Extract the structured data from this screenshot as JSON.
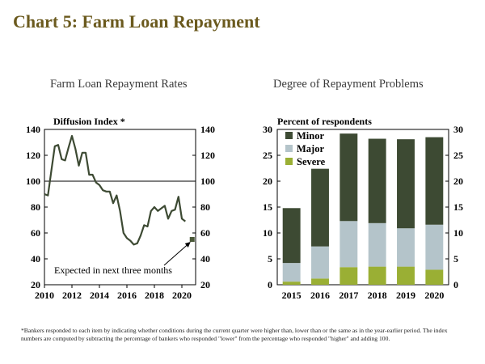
{
  "page": {
    "title": "Chart 5: Farm Loan Repayment",
    "footnote": "*Bankers responded to each item by indicating whether conditions during the current quarter were higher than, lower than or the same as in the year-earlier period.  The index numbers are computed by subtracting the percentage of bankers who responded \"lower\" from the percentage who responded \"higher\" and adding 100."
  },
  "colors": {
    "title": "#6b5a1e",
    "line": "#3d4a33",
    "minor": "#3d4a33",
    "major": "#b4c4ca",
    "severe": "#9aaf34",
    "expected_marker": "#4a5838"
  },
  "chart_data": [
    {
      "type": "line",
      "title": "Farm Loan Repayment Rates",
      "ylabel": "Diffusion Index *",
      "ylim": [
        20,
        140
      ],
      "yticks": [
        "20",
        "40",
        "60",
        "80",
        "100",
        "120",
        "140"
      ],
      "xlim": [
        2010,
        2021
      ],
      "xticks": [
        "2010",
        "2012",
        "2014",
        "2016",
        "2018",
        "2020"
      ],
      "reference_line": 100,
      "grid": false,
      "series": [
        {
          "x": [
            2010.0,
            2010.25,
            2010.5,
            2010.75,
            2011.0,
            2011.25,
            2011.5,
            2011.75,
            2012.0,
            2012.25,
            2012.5,
            2012.75,
            2013.0,
            2013.25,
            2013.5,
            2013.75,
            2014.0,
            2014.25,
            2014.5,
            2014.75,
            2015.0,
            2015.25,
            2015.5,
            2015.75,
            2016.0,
            2016.25,
            2016.5,
            2016.75,
            2017.0,
            2017.25,
            2017.5,
            2017.75,
            2018.0,
            2018.25,
            2018.5,
            2018.75,
            2019.0,
            2019.25,
            2019.5,
            2019.75,
            2020.0,
            2020.25,
            2020.5
          ],
          "values": [
            90,
            89,
            108,
            127,
            128,
            117,
            116,
            126,
            135,
            125,
            112,
            122,
            122,
            105,
            105,
            99,
            97,
            93,
            92,
            92,
            83,
            89,
            77,
            60,
            56,
            54,
            51,
            52,
            58,
            66,
            65,
            77,
            80,
            77,
            79,
            81,
            71,
            77,
            78,
            88,
            71,
            69,
            null
          ]
        }
      ],
      "expected": {
        "x": 2020.75,
        "value": 55,
        "label": "Expected in next three months"
      }
    },
    {
      "type": "bar",
      "stacked": true,
      "title": "Degree of Repayment Problems",
      "ylabel": "Percent of respondents",
      "ylim": [
        0,
        30
      ],
      "yticks": [
        "0",
        "5",
        "10",
        "15",
        "20",
        "25",
        "30"
      ],
      "categories": [
        "2015",
        "2016",
        "2017",
        "2018",
        "2019",
        "2020"
      ],
      "legend_position": "top-left",
      "series": [
        {
          "name": "Severe",
          "values": [
            0.6,
            1.2,
            3.4,
            3.5,
            3.5,
            2.9
          ]
        },
        {
          "name": "Major",
          "values": [
            3.6,
            6.2,
            8.9,
            8.4,
            7.4,
            8.7
          ]
        },
        {
          "name": "Minor",
          "values": [
            10.6,
            15.0,
            16.9,
            16.3,
            17.2,
            16.9
          ]
        }
      ],
      "legend_order": [
        "Minor",
        "Major",
        "Severe"
      ]
    }
  ]
}
